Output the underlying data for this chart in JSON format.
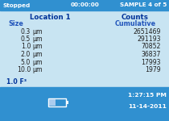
{
  "status_left": "Stopped",
  "status_center": "00:00:00",
  "status_right": "SAMPLE 4 of 5",
  "header_left": "Location 1",
  "header_right": "Counts",
  "col1_label": "Size",
  "col2_label": "Cumulative",
  "sizes": [
    "0.3",
    "0.5",
    "1.0",
    "2.0",
    "5.0",
    "10.0"
  ],
  "unit": "μm",
  "counts": [
    "2651469",
    "291193",
    "70852",
    "36837",
    "17993",
    "1979"
  ],
  "footer_left": "1.0 F³",
  "time": "1:27:15 PM",
  "date": "11-14-2011",
  "bg_color": "#c8e4f2",
  "status_bar_color": "#3090d0",
  "bottom_bar_color": "#3090d0",
  "text_dark_blue": "#003399",
  "text_medium_blue": "#2255bb",
  "text_black": "#202020",
  "text_white": "#ffffff"
}
